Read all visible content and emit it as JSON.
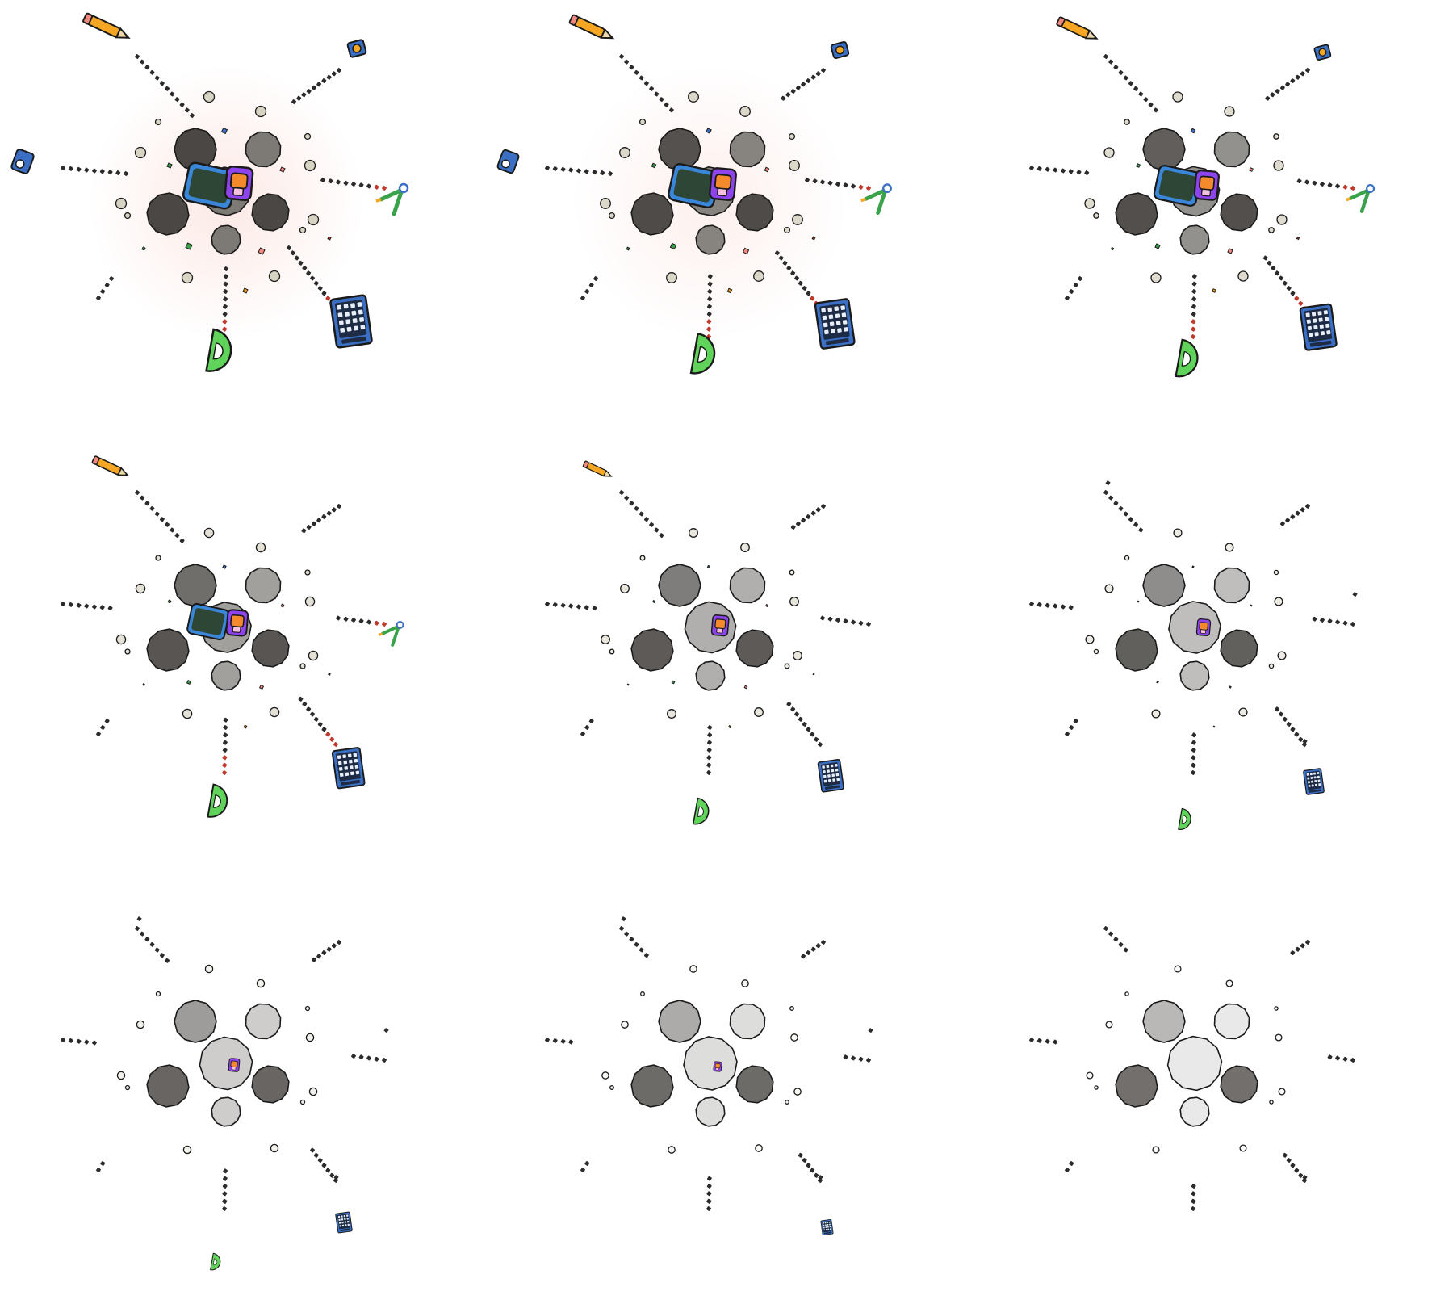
{
  "sprite_sheet": {
    "description_free": true,
    "grid": {
      "columns": 3,
      "rows": 3
    },
    "frames": [
      {
        "index": 1,
        "fade": 1.0,
        "items_scale": 1.0,
        "tool_opacity": 1.0,
        "glow": 1.0,
        "items": [
          "pencil",
          "sharpener",
          "eraser",
          "compass",
          "calculator",
          "protractor",
          "backpack",
          "tablet"
        ]
      },
      {
        "index": 2,
        "fade": 0.92,
        "items_scale": 0.95,
        "tool_opacity": 1.0,
        "glow": 0.7,
        "items": [
          "pencil",
          "sharpener",
          "eraser",
          "compass",
          "calculator",
          "protractor",
          "backpack",
          "tablet"
        ]
      },
      {
        "index": 3,
        "fade": 0.82,
        "items_scale": 0.88,
        "tool_opacity": 1.0,
        "glow": 0.0,
        "items": [
          "pencil",
          "sharpener",
          "compass",
          "calculator",
          "protractor",
          "backpack",
          "tablet"
        ]
      },
      {
        "index": 4,
        "fade": 0.7,
        "items_scale": 0.78,
        "tool_opacity": 1.0,
        "glow": 0.0,
        "items": [
          "pencil",
          "compass",
          "calculator",
          "protractor",
          "backpack",
          "tablet"
        ]
      },
      {
        "index": 5,
        "fade": 0.58,
        "items_scale": 0.62,
        "tool_opacity": 1.0,
        "glow": 0.0,
        "items": [
          "pencil",
          "calculator",
          "protractor",
          "backpack"
        ]
      },
      {
        "index": 6,
        "fade": 0.46,
        "items_scale": 0.5,
        "tool_opacity": 1.0,
        "glow": 0.0,
        "items": [
          "calculator",
          "protractor",
          "backpack"
        ]
      },
      {
        "index": 7,
        "fade": 0.34,
        "items_scale": 0.4,
        "tool_opacity": 1.0,
        "glow": 0.0,
        "items": [
          "calculator",
          "protractor",
          "backpack"
        ]
      },
      {
        "index": 8,
        "fade": 0.22,
        "items_scale": 0.3,
        "tool_opacity": 1.0,
        "glow": 0.0,
        "items": [
          "calculator",
          "backpack"
        ]
      },
      {
        "index": 9,
        "fade": 0.12,
        "items_scale": 0.2,
        "tool_opacity": 1.0,
        "glow": 0.0,
        "items": []
      }
    ],
    "palette": {
      "outline": "#1a1a1a",
      "dark_stone": "#4a4744",
      "mid_stone": "#7d7a76",
      "light_stone": "#c9c6bf",
      "pebble": "#d8d4c4",
      "glow": "#f9d6cf",
      "trail": "#2b2b2b",
      "trail_hot": "#c0392b",
      "pencil_body": "#f5a623",
      "pencil_tip": "#f0d9a8",
      "eraser_pink": "#f08a80",
      "blue_item": "#3a6fc4",
      "calc_screen": "#1e2b44",
      "protractor": "#5fd35a",
      "compass_green": "#3aa34a",
      "backpack_purple": "#8e44ec",
      "backpack_orange": "#f58a2c",
      "tablet_dark": "#2e4636",
      "tablet_frame": "#3a86d8"
    },
    "icons": [
      "pencil-icon",
      "sharpener-icon",
      "eraser-icon",
      "compass-icon",
      "calculator-icon",
      "protractor-icon",
      "backpack-icon",
      "tablet-icon"
    ]
  }
}
